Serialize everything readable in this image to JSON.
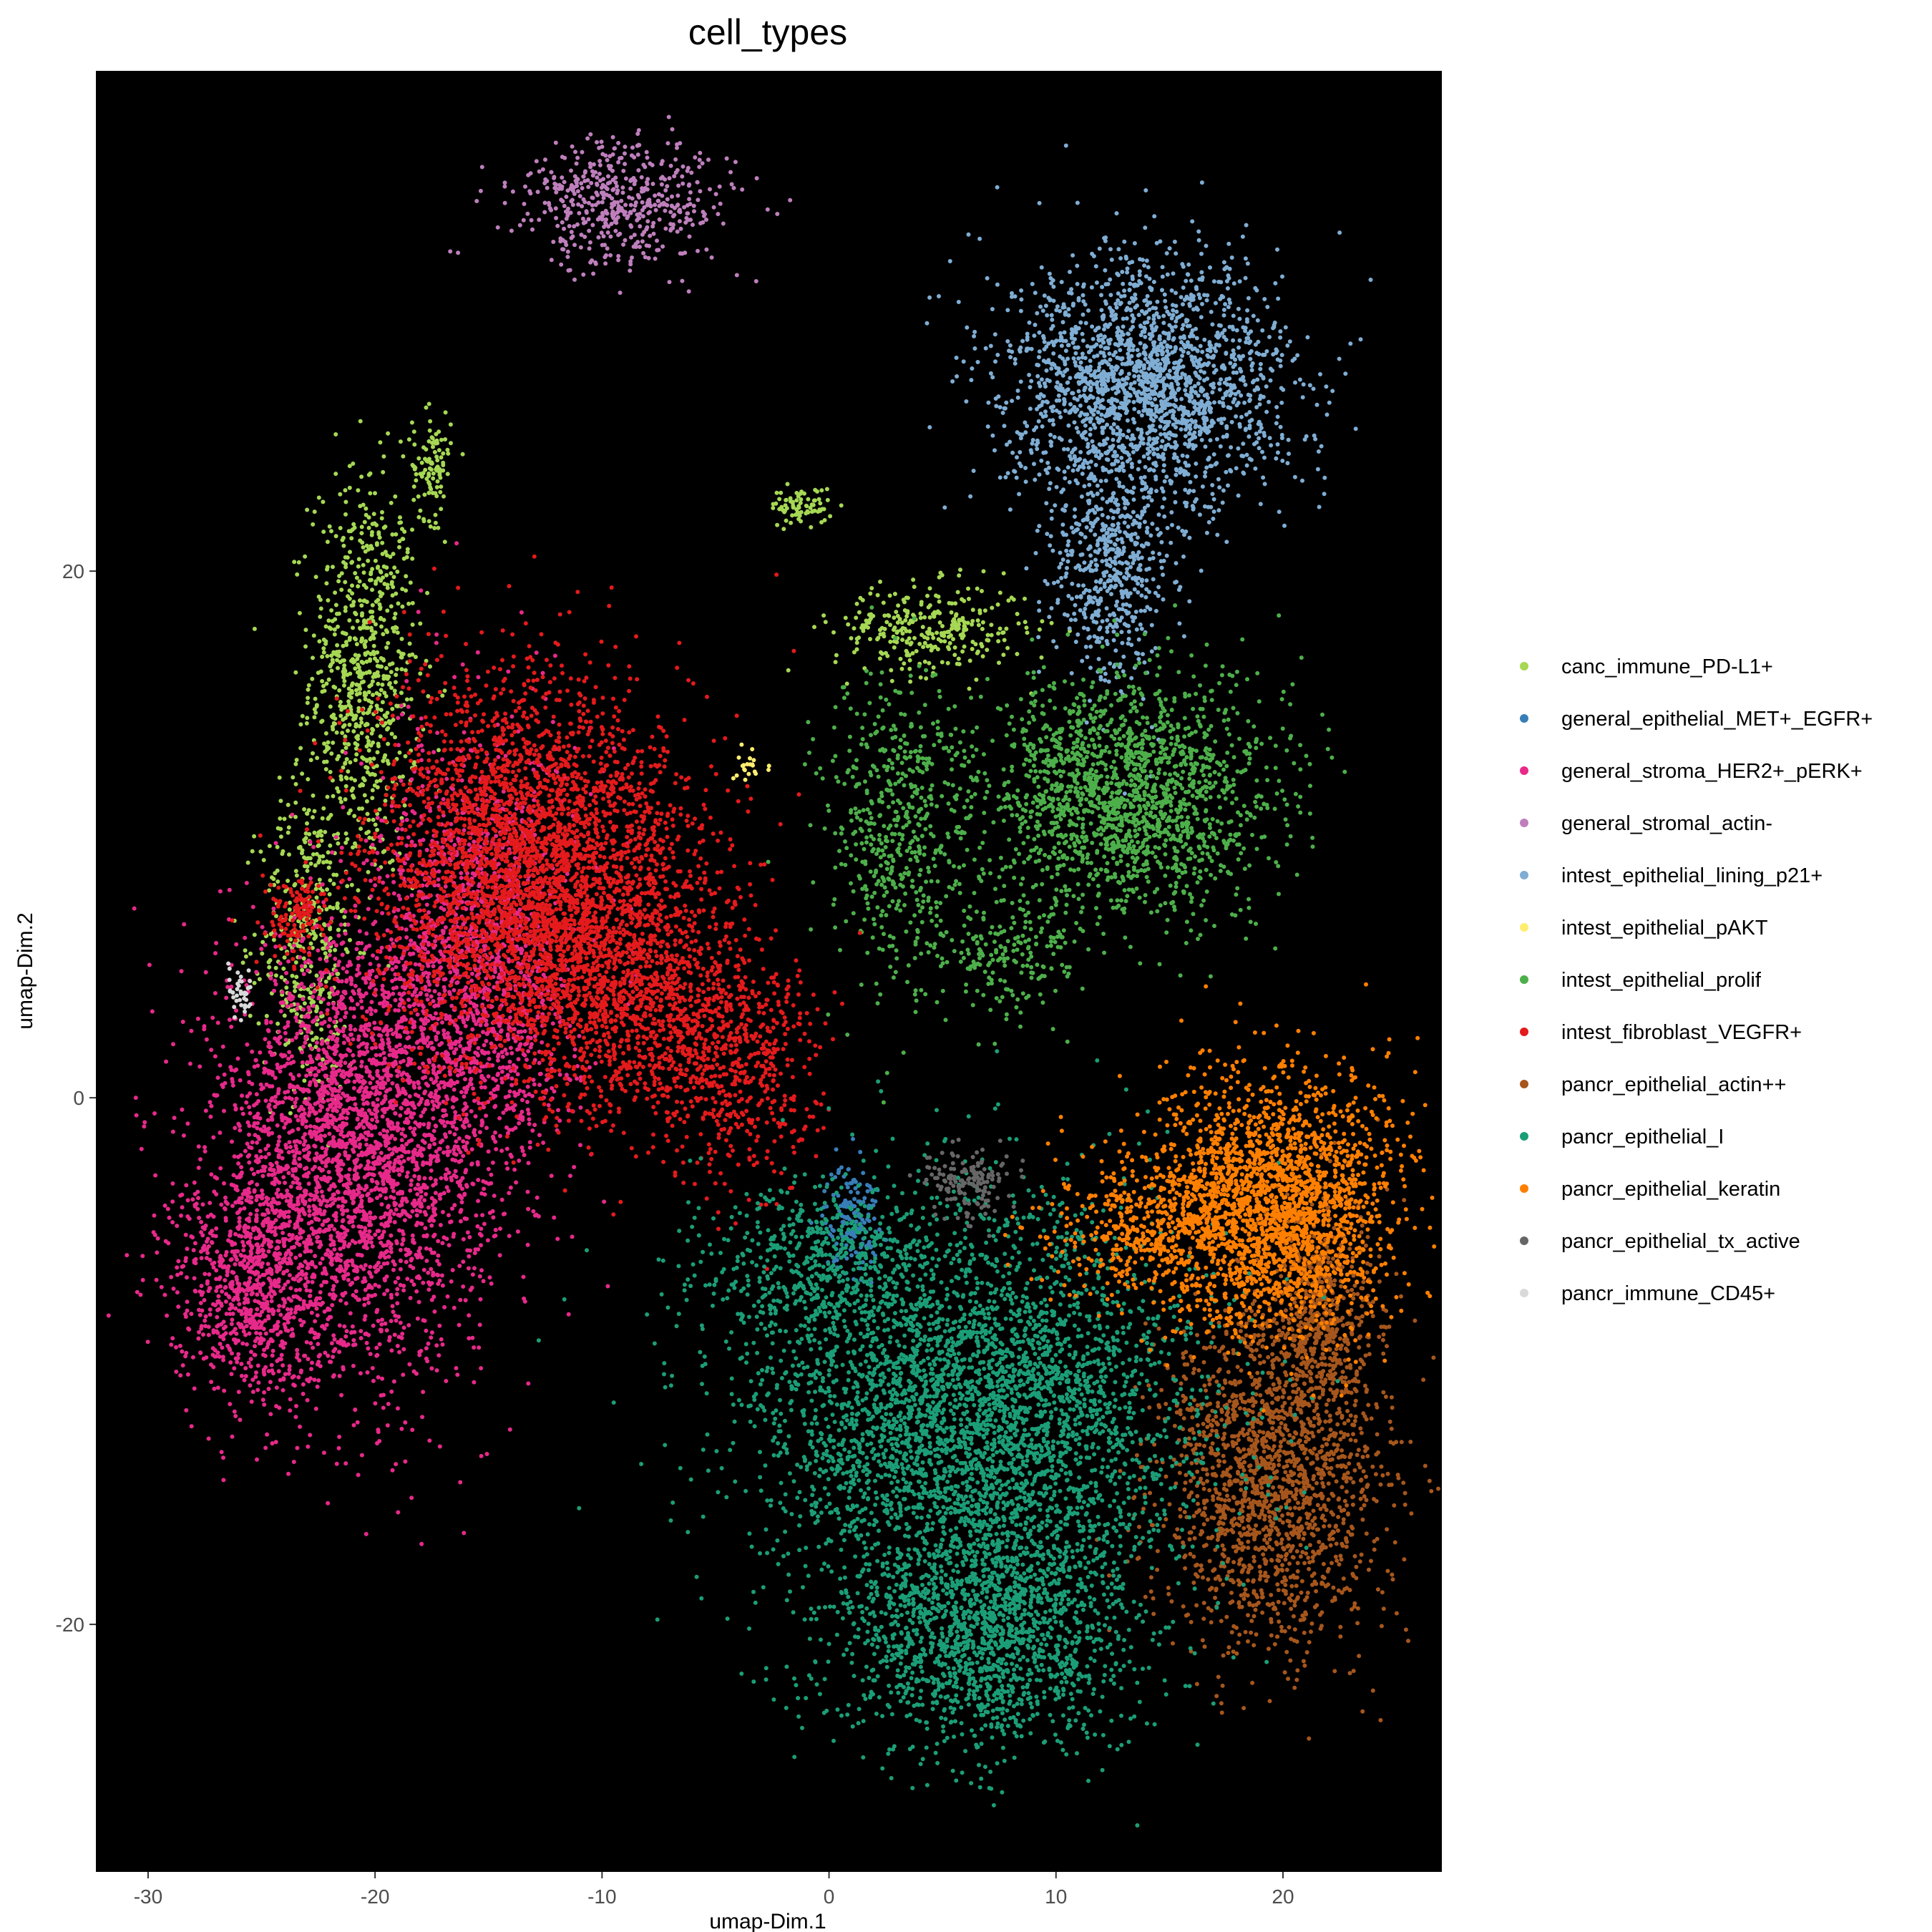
{
  "chart_data": {
    "type": "scatter",
    "title": "cell_types",
    "xlabel": "umap-Dim.1",
    "ylabel": "umap-Dim.2",
    "xlim": [
      -32.3,
      27.0
    ],
    "ylim": [
      -29.4,
      39.0
    ],
    "x_ticks": [
      -30,
      -20,
      -10,
      0,
      10,
      20
    ],
    "y_ticks": [
      -20,
      0,
      20
    ],
    "x_tick_labels": [
      "-30",
      "-20",
      "-10",
      "0",
      "10",
      "20"
    ],
    "y_tick_labels": [
      "-20",
      "0",
      "20"
    ],
    "background": "#000000",
    "legend_position": "right",
    "series": [
      {
        "name": "canc_immune_PD-L1+",
        "color": "#a6d854",
        "clusters": [
          {
            "center": [
              -20.5,
              16.0
            ],
            "spread": [
              1.4,
              4.5
            ],
            "weight": 0.03
          },
          {
            "center": [
              -23.0,
              6.0
            ],
            "spread": [
              1.2,
              3.5
            ],
            "weight": 0.015
          },
          {
            "center": [
              -17.5,
              24.0
            ],
            "spread": [
              0.5,
              1.2
            ],
            "weight": 0.004
          },
          {
            "center": [
              4.5,
              17.8
            ],
            "spread": [
              2.5,
              1.0
            ],
            "weight": 0.012
          },
          {
            "center": [
              -1.2,
              22.5
            ],
            "spread": [
              0.8,
              0.4
            ],
            "weight": 0.003
          }
        ]
      },
      {
        "name": "general_epithelial_MET+_EGFR+",
        "color": "#377eb8",
        "clusters": [
          {
            "center": [
              1.0,
              -4.5
            ],
            "spread": [
              0.7,
              1.2
            ],
            "weight": 0.006
          }
        ]
      },
      {
        "name": "general_stroma_HER2+_pERK+",
        "color": "#e7298a",
        "clusters": [
          {
            "center": [
              -21.0,
              -2.0
            ],
            "spread": [
              3.5,
              5.0
            ],
            "weight": 0.12
          },
          {
            "center": [
              -25.5,
              -7.0
            ],
            "spread": [
              2.0,
              2.5
            ],
            "weight": 0.03
          },
          {
            "center": [
              -15.5,
              5.0
            ],
            "spread": [
              2.5,
              5.0
            ],
            "weight": 0.06
          }
        ]
      },
      {
        "name": "general_stromal_actin-",
        "color": "#be7fbc",
        "clusters": [
          {
            "center": [
              -9.0,
              34.0
            ],
            "spread": [
              2.8,
              1.4
            ],
            "weight": 0.02
          }
        ]
      },
      {
        "name": "intest_epithelial_lining_p21+",
        "color": "#7fadd3",
        "clusters": [
          {
            "center": [
              14.0,
              27.0
            ],
            "spread": [
              3.6,
              2.8
            ],
            "weight": 0.08
          },
          {
            "center": [
              12.5,
              20.0
            ],
            "spread": [
              1.5,
              2.5
            ],
            "weight": 0.02
          }
        ]
      },
      {
        "name": "intest_epithelial_pAKT",
        "color": "#ffed6f",
        "clusters": [
          {
            "center": [
              -3.5,
              12.5
            ],
            "spread": [
              0.6,
              0.4
            ],
            "weight": 0.0008
          }
        ]
      },
      {
        "name": "intest_epithelial_prolif",
        "color": "#4daf4a",
        "clusters": [
          {
            "center": [
              13.0,
              11.5
            ],
            "spread": [
              3.8,
              2.6
            ],
            "weight": 0.07
          },
          {
            "center": [
              3.0,
              10.0
            ],
            "spread": [
              1.8,
              3.5
            ],
            "weight": 0.02
          },
          {
            "center": [
              8.0,
              5.5
            ],
            "spread": [
              2.0,
              1.5
            ],
            "weight": 0.008
          }
        ]
      },
      {
        "name": "intest_fibroblast_VEGFR+",
        "color": "#e41a1c",
        "clusters": [
          {
            "center": [
              -13.0,
              8.5
            ],
            "spread": [
              4.0,
              4.2
            ],
            "weight": 0.14
          },
          {
            "center": [
              -8.5,
              4.0
            ],
            "spread": [
              3.0,
              3.0
            ],
            "weight": 0.04
          },
          {
            "center": [
              -4.0,
              1.0
            ],
            "spread": [
              2.0,
              2.5
            ],
            "weight": 0.02
          },
          {
            "center": [
              -23.5,
              7.0
            ],
            "spread": [
              0.8,
              1.0
            ],
            "weight": 0.005
          }
        ]
      },
      {
        "name": "pancr_epithelial_actin++",
        "color": "#a6561c",
        "clusters": [
          {
            "center": [
              19.5,
              -14.5
            ],
            "spread": [
              2.8,
              3.8
            ],
            "weight": 0.07
          },
          {
            "center": [
              21.5,
              -8.0
            ],
            "spread": [
              1.6,
              2.5
            ],
            "weight": 0.02
          }
        ]
      },
      {
        "name": "pancr_epithelial_I",
        "color": "#1b9e77",
        "clusters": [
          {
            "center": [
              6.5,
              -12.0
            ],
            "spread": [
              5.5,
              4.5
            ],
            "weight": 0.15
          },
          {
            "center": [
              7.0,
              -20.5
            ],
            "spread": [
              3.8,
              2.6
            ],
            "weight": 0.06
          },
          {
            "center": [
              -0.5,
              -6.5
            ],
            "spread": [
              3.0,
              2.0
            ],
            "weight": 0.02
          }
        ]
      },
      {
        "name": "pancr_epithelial_keratin",
        "color": "#ff7f00",
        "clusters": [
          {
            "center": [
              19.5,
              -4.0
            ],
            "spread": [
              3.2,
              2.8
            ],
            "weight": 0.09
          },
          {
            "center": [
              14.0,
              -5.0
            ],
            "spread": [
              2.5,
              1.5
            ],
            "weight": 0.015
          }
        ]
      },
      {
        "name": "pancr_epithelial_tx_active",
        "color": "#666666",
        "clusters": [
          {
            "center": [
              6.0,
              -3.2
            ],
            "spread": [
              1.2,
              0.8
            ],
            "weight": 0.006
          }
        ]
      },
      {
        "name": "pancr_immune_CD45+",
        "color": "#d9d9d9",
        "clusters": [
          {
            "center": [
              -26.0,
              4.0
            ],
            "spread": [
              0.3,
              0.6
            ],
            "weight": 0.0015
          }
        ]
      }
    ]
  }
}
